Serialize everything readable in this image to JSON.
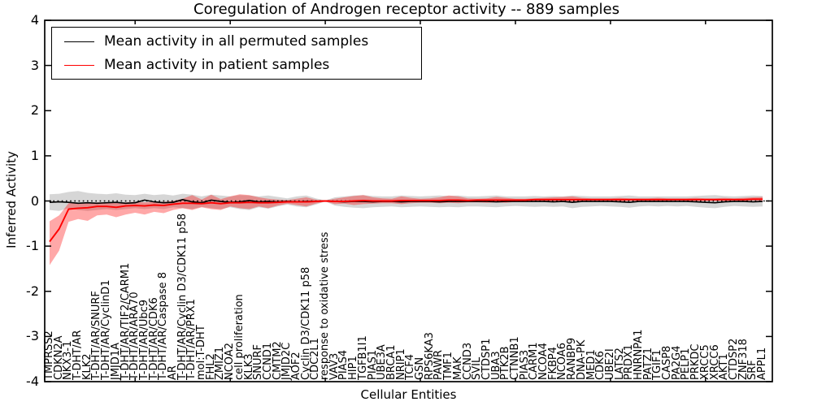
{
  "figure": {
    "background": "#ffffff"
  },
  "chart_data": {
    "type": "line",
    "title": "Coregulation of Androgen receptor activity -- 889 samples",
    "xlabel": "Cellular Entities",
    "ylabel": "Inferred Activity",
    "ylim": [
      -4,
      4
    ],
    "yticks": [
      4,
      3,
      2,
      1,
      0,
      -1,
      -2,
      -3,
      -4
    ],
    "ytick_labels": [
      "4",
      "3",
      "2",
      "1",
      "0",
      "-1",
      "-2",
      "-3",
      "-4"
    ],
    "xtick_indices": [
      9,
      19,
      29,
      39,
      49,
      59,
      69
    ],
    "grid": false,
    "legend_position": "upper left",
    "zero_line": {
      "value": 0,
      "style": "dotted",
      "color": "#000000"
    },
    "categories": [
      "TMPRSS2",
      "CDKN2A",
      "NKX3-1",
      "T-DHT/AR",
      "KLK2",
      "T-DHT/AR/SNURF",
      "T-DHT/AR/CyclinD1",
      "JMJD1A",
      "T-DHT/AR/TIF2/CARM1",
      "T-DHT/AR/ARA70",
      "T-DHT/AR/Ubc9",
      "T-DHT/AR/CDK6",
      "T-DHT/AR/Caspase 8",
      "AR",
      "T-DHT/AR/Cyclin D3/CDK11 p58",
      "T-DHT/AR/PRX1",
      "mol:T-DHT",
      "FHL2",
      "ZMIZ1",
      "NCOA2",
      "cell proliferation",
      "KLK3",
      "SNURF",
      "CCND1",
      "CMTM2",
      "JMJD2C",
      "AOF2",
      "Cyclin D3/CDK11 p58",
      "CDC2L1",
      "response to oxidative stress",
      "VAV3",
      "PIAS4",
      "HIP1",
      "TGFB1I1",
      "PIAS1",
      "UBE3A",
      "BRCA1",
      "NRIP1",
      "TCF4",
      "GSN",
      "RPS6KA3",
      "PAWR",
      "TMF1",
      "MAK",
      "CCND3",
      "SVIL",
      "CTDSP1",
      "UBA3",
      "PTK2B",
      "CTNNB1",
      "PIAS3",
      "CARM1",
      "NCOA4",
      "FKBP4",
      "NCOA6",
      "RANBP9",
      "DNA-PK",
      "MED1",
      "CDK6",
      "UBE2I",
      "LATS2",
      "PRDX1",
      "HNRNPA1",
      "PATZ1",
      "TGIF1",
      "CASP8",
      "PA2G4",
      "PELP1",
      "PRKDC",
      "XRCC5",
      "XRCC6",
      "AKT1",
      "CTDSP2",
      "ZNF318",
      "SRF",
      "APPL1"
    ],
    "series": [
      {
        "name": "Mean activity in all permuted samples",
        "color": "#000000",
        "band_color": "#808080",
        "band_opacity": 0.32,
        "values": [
          -0.03,
          -0.02,
          -0.03,
          -0.05,
          -0.04,
          -0.05,
          -0.04,
          -0.03,
          -0.05,
          -0.04,
          0.02,
          -0.02,
          -0.04,
          -0.03,
          0.03,
          -0.02,
          -0.04,
          0.02,
          -0.01,
          -0.03,
          -0.02,
          0.01,
          -0.02,
          -0.01,
          -0.02,
          -0.01,
          -0.02,
          -0.01,
          -0.01,
          0.0,
          -0.01,
          -0.02,
          -0.01,
          -0.01,
          -0.02,
          -0.01,
          -0.01,
          -0.02,
          -0.01,
          -0.01,
          -0.01,
          -0.02,
          -0.01,
          -0.01,
          -0.01,
          -0.01,
          -0.01,
          -0.02,
          -0.01,
          -0.01,
          -0.01,
          -0.01,
          -0.01,
          -0.02,
          -0.01,
          -0.03,
          -0.01,
          -0.01,
          -0.01,
          -0.01,
          -0.02,
          -0.03,
          -0.01,
          -0.01,
          -0.01,
          -0.01,
          -0.01,
          -0.01,
          -0.02,
          -0.03,
          -0.04,
          -0.02,
          -0.01,
          -0.01,
          -0.02,
          -0.01
        ],
        "band_lo": [
          -0.2,
          -0.22,
          -0.16,
          -0.2,
          -0.22,
          -0.2,
          -0.18,
          -0.2,
          -0.18,
          -0.16,
          -0.18,
          -0.16,
          -0.18,
          -0.14,
          -0.16,
          -0.18,
          -0.13,
          -0.16,
          -0.18,
          -0.14,
          -0.18,
          -0.2,
          -0.14,
          -0.17,
          -0.12,
          -0.08,
          -0.12,
          -0.14,
          -0.08,
          -0.01,
          -0.1,
          -0.13,
          -0.15,
          -0.16,
          -0.14,
          -0.13,
          -0.12,
          -0.14,
          -0.13,
          -0.12,
          -0.13,
          -0.14,
          -0.13,
          -0.14,
          -0.12,
          -0.12,
          -0.13,
          -0.14,
          -0.12,
          -0.11,
          -0.12,
          -0.13,
          -0.12,
          -0.13,
          -0.12,
          -0.16,
          -0.13,
          -0.12,
          -0.11,
          -0.12,
          -0.13,
          -0.15,
          -0.12,
          -0.11,
          -0.12,
          -0.11,
          -0.12,
          -0.11,
          -0.13,
          -0.15,
          -0.16,
          -0.13,
          -0.11,
          -0.12,
          -0.13,
          -0.12
        ],
        "band_hi": [
          0.15,
          0.16,
          0.2,
          0.22,
          0.18,
          0.16,
          0.15,
          0.17,
          0.14,
          0.13,
          0.16,
          0.13,
          0.15,
          0.12,
          0.16,
          0.14,
          0.1,
          0.14,
          0.12,
          0.1,
          0.13,
          0.12,
          0.1,
          0.12,
          0.09,
          0.06,
          0.1,
          0.12,
          0.06,
          0.01,
          0.08,
          0.1,
          0.12,
          0.13,
          0.11,
          0.1,
          0.1,
          0.12,
          0.11,
          0.1,
          0.11,
          0.12,
          0.11,
          0.12,
          0.1,
          0.1,
          0.11,
          0.12,
          0.1,
          0.1,
          0.1,
          0.11,
          0.1,
          0.11,
          0.1,
          0.12,
          0.11,
          0.1,
          0.1,
          0.1,
          0.11,
          0.12,
          0.1,
          0.1,
          0.1,
          0.1,
          0.1,
          0.1,
          0.11,
          0.12,
          0.13,
          0.11,
          0.1,
          0.11,
          0.12,
          0.11
        ]
      },
      {
        "name": "Mean activity in patient samples",
        "color": "#ff0000",
        "band_color": "#ff0000",
        "band_opacity": 0.34,
        "values": [
          -0.9,
          -0.62,
          -0.18,
          -0.16,
          -0.15,
          -0.12,
          -0.12,
          -0.14,
          -0.11,
          -0.1,
          -0.11,
          -0.09,
          -0.1,
          -0.07,
          -0.05,
          -0.05,
          -0.06,
          -0.04,
          -0.06,
          -0.04,
          -0.04,
          -0.03,
          -0.04,
          -0.04,
          -0.03,
          -0.02,
          -0.02,
          -0.02,
          -0.01,
          0.0,
          -0.01,
          -0.01,
          0.0,
          0.01,
          0.0,
          0.0,
          0.0,
          0.01,
          0.01,
          0.01,
          0.01,
          0.01,
          0.02,
          0.02,
          0.01,
          0.02,
          0.02,
          0.02,
          0.02,
          0.02,
          0.02,
          0.03,
          0.03,
          0.03,
          0.03,
          0.03,
          0.03,
          0.03,
          0.03,
          0.03,
          0.03,
          0.03,
          0.03,
          0.03,
          0.03,
          0.03,
          0.03,
          0.03,
          0.03,
          0.03,
          0.03,
          0.03,
          0.03,
          0.03,
          0.04,
          0.04
        ],
        "band_lo": [
          -1.42,
          -1.1,
          -0.46,
          -0.4,
          -0.44,
          -0.32,
          -0.3,
          -0.36,
          -0.3,
          -0.26,
          -0.3,
          -0.24,
          -0.27,
          -0.2,
          -0.16,
          -0.2,
          -0.14,
          -0.18,
          -0.2,
          -0.12,
          -0.16,
          -0.18,
          -0.12,
          -0.16,
          -0.1,
          -0.06,
          -0.09,
          -0.12,
          -0.06,
          -0.01,
          -0.07,
          -0.06,
          -0.09,
          -0.07,
          -0.06,
          -0.05,
          -0.05,
          -0.07,
          -0.05,
          -0.04,
          -0.04,
          -0.05,
          -0.04,
          -0.05,
          -0.03,
          -0.03,
          -0.04,
          -0.03,
          -0.04,
          -0.02,
          -0.02,
          -0.02,
          -0.01,
          -0.02,
          -0.01,
          -0.02,
          -0.01,
          -0.01,
          0.0,
          0.0,
          -0.01,
          0.0,
          0.0,
          0.0,
          0.0,
          0.0,
          0.01,
          0.0,
          0.0,
          0.0,
          0.0,
          0.0,
          0.01,
          0.0,
          0.01,
          0.0
        ],
        "band_hi": [
          -0.45,
          -0.32,
          -0.05,
          -0.04,
          -0.04,
          -0.03,
          -0.03,
          -0.04,
          -0.03,
          -0.02,
          -0.03,
          -0.02,
          -0.02,
          0.0,
          0.05,
          0.13,
          0.03,
          0.14,
          0.04,
          0.1,
          0.15,
          0.13,
          0.08,
          0.05,
          0.03,
          0.02,
          0.05,
          0.08,
          0.03,
          0.01,
          0.05,
          0.08,
          0.11,
          0.13,
          0.08,
          0.06,
          0.05,
          0.1,
          0.07,
          0.05,
          0.06,
          0.08,
          0.12,
          0.1,
          0.06,
          0.05,
          0.06,
          0.09,
          0.07,
          0.05,
          0.05,
          0.06,
          0.07,
          0.08,
          0.09,
          0.1,
          0.07,
          0.06,
          0.06,
          0.06,
          0.07,
          0.06,
          0.06,
          0.06,
          0.07,
          0.06,
          0.06,
          0.06,
          0.07,
          0.06,
          0.06,
          0.07,
          0.06,
          0.07,
          0.08,
          0.09
        ]
      }
    ]
  }
}
